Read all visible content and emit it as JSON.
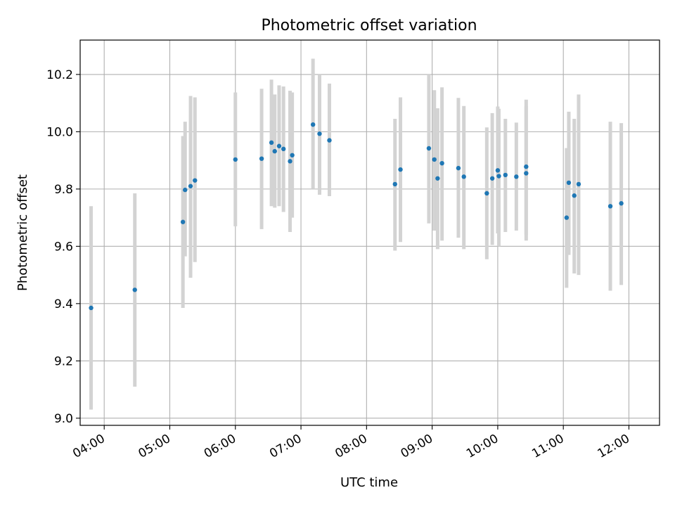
{
  "chart_data": {
    "type": "scatter",
    "title": "Photometric offset variation",
    "xlabel": "UTC time",
    "ylabel": "Photometric offset",
    "x_ticks": [
      "04:00",
      "05:00",
      "06:00",
      "07:00",
      "08:00",
      "09:00",
      "10:00",
      "11:00",
      "12:00"
    ],
    "y_ticks": [
      "9.0",
      "9.2",
      "9.4",
      "9.6",
      "9.8",
      "10.0",
      "10.2"
    ],
    "xlim": [
      "03:38",
      "12:28"
    ],
    "ylim": [
      8.975,
      10.32
    ],
    "grid": true,
    "colors": {
      "point": "#1f77b4",
      "errorbar": "#d3d3d3",
      "grid": "#b0b0b0"
    },
    "points": [
      {
        "x": "03:48",
        "y": 9.385,
        "low": 9.03,
        "high": 9.74
      },
      {
        "x": "04:28",
        "y": 9.448,
        "low": 9.11,
        "high": 9.785
      },
      {
        "x": "05:12",
        "y": 9.685,
        "low": 9.385,
        "high": 9.985
      },
      {
        "x": "05:14",
        "y": 9.797,
        "low": 9.565,
        "high": 10.035
      },
      {
        "x": "05:19",
        "y": 9.81,
        "low": 9.49,
        "high": 10.125
      },
      {
        "x": "05:23",
        "y": 9.83,
        "low": 9.545,
        "high": 10.12
      },
      {
        "x": "06:00",
        "y": 9.903,
        "low": 9.67,
        "high": 10.137
      },
      {
        "x": "06:24",
        "y": 9.906,
        "low": 9.66,
        "high": 10.15
      },
      {
        "x": "06:33",
        "y": 9.962,
        "low": 9.74,
        "high": 10.182
      },
      {
        "x": "06:36",
        "y": 9.932,
        "low": 9.735,
        "high": 10.13
      },
      {
        "x": "06:40",
        "y": 9.95,
        "low": 9.74,
        "high": 10.162
      },
      {
        "x": "06:44",
        "y": 9.94,
        "low": 9.72,
        "high": 10.158
      },
      {
        "x": "06:50",
        "y": 9.897,
        "low": 9.65,
        "high": 10.143
      },
      {
        "x": "06:52",
        "y": 9.918,
        "low": 9.7,
        "high": 10.137
      },
      {
        "x": "07:11",
        "y": 10.025,
        "low": 9.8,
        "high": 10.255
      },
      {
        "x": "07:17",
        "y": 9.993,
        "low": 9.78,
        "high": 10.2
      },
      {
        "x": "07:26",
        "y": 9.97,
        "low": 9.775,
        "high": 10.168
      },
      {
        "x": "08:26",
        "y": 9.817,
        "low": 9.585,
        "high": 10.045
      },
      {
        "x": "08:31",
        "y": 9.868,
        "low": 9.615,
        "high": 10.12
      },
      {
        "x": "08:57",
        "y": 9.942,
        "low": 9.68,
        "high": 10.2
      },
      {
        "x": "09:02",
        "y": 9.903,
        "low": 9.655,
        "high": 10.145
      },
      {
        "x": "09:05",
        "y": 9.837,
        "low": 9.59,
        "high": 10.082
      },
      {
        "x": "09:09",
        "y": 9.89,
        "low": 9.62,
        "high": 10.155
      },
      {
        "x": "09:24",
        "y": 9.873,
        "low": 9.63,
        "high": 10.118
      },
      {
        "x": "09:29",
        "y": 9.843,
        "low": 9.59,
        "high": 10.09
      },
      {
        "x": "09:50",
        "y": 9.785,
        "low": 9.555,
        "high": 10.015
      },
      {
        "x": "09:55",
        "y": 9.837,
        "low": 9.605,
        "high": 10.065
      },
      {
        "x": "10:00",
        "y": 9.865,
        "low": 9.645,
        "high": 10.088
      },
      {
        "x": "10:01",
        "y": 9.845,
        "low": 9.6,
        "high": 10.08
      },
      {
        "x": "10:07",
        "y": 9.849,
        "low": 9.65,
        "high": 10.045
      },
      {
        "x": "10:17",
        "y": 9.843,
        "low": 9.655,
        "high": 10.032
      },
      {
        "x": "10:26",
        "y": 9.878,
        "low": 9.64,
        "high": 10.112
      },
      {
        "x": "10:26",
        "y": 9.855,
        "low": 9.62,
        "high": 10.09
      },
      {
        "x": "11:03",
        "y": 9.7,
        "low": 9.455,
        "high": 9.943
      },
      {
        "x": "11:05",
        "y": 9.822,
        "low": 9.57,
        "high": 10.07
      },
      {
        "x": "11:10",
        "y": 9.777,
        "low": 9.505,
        "high": 10.045
      },
      {
        "x": "11:14",
        "y": 9.817,
        "low": 9.5,
        "high": 10.13
      },
      {
        "x": "11:43",
        "y": 9.74,
        "low": 9.445,
        "high": 10.035
      },
      {
        "x": "11:53",
        "y": 9.75,
        "low": 9.465,
        "high": 10.03
      }
    ]
  }
}
